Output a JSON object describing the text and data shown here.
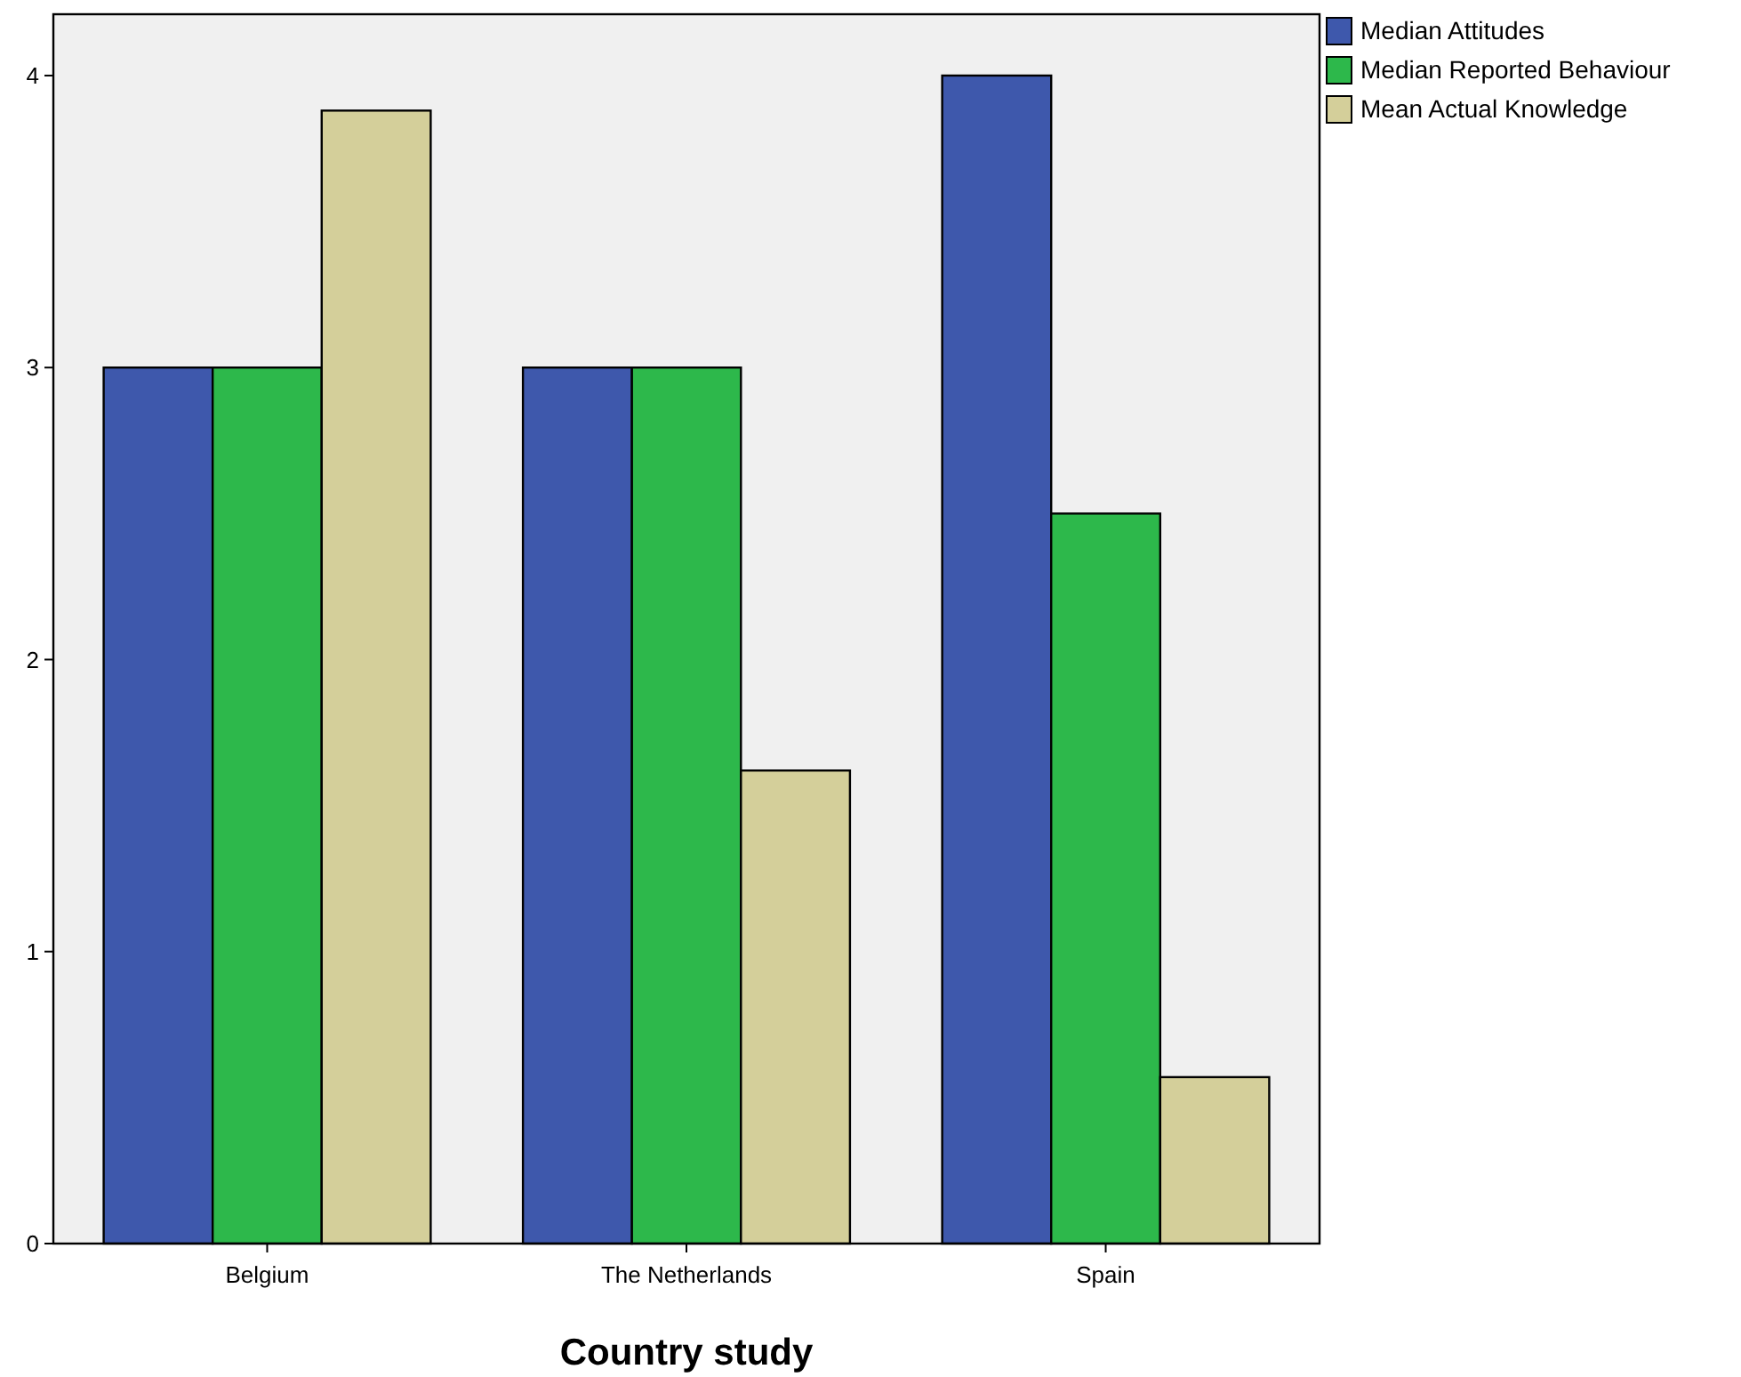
{
  "chart_data": {
    "type": "bar",
    "xlabel": "Country study",
    "categories": [
      "Belgium",
      "The Netherlands",
      "Spain"
    ],
    "series": [
      {
        "name": "Median Attitudes",
        "color": "#3e58ac",
        "values": [
          3,
          3,
          4
        ]
      },
      {
        "name": "Median Reported Behaviour",
        "color": "#2db84b",
        "values": [
          3,
          3,
          2.5
        ]
      },
      {
        "name": "Mean Actual Knowledge",
        "color": "#d4cf9a",
        "values": [
          3.88,
          1.62,
          0.57
        ]
      }
    ],
    "ylim": [
      0,
      4.21
    ],
    "yticks": [
      0,
      1,
      2,
      3,
      4
    ],
    "grid": false,
    "legend": "top right"
  }
}
